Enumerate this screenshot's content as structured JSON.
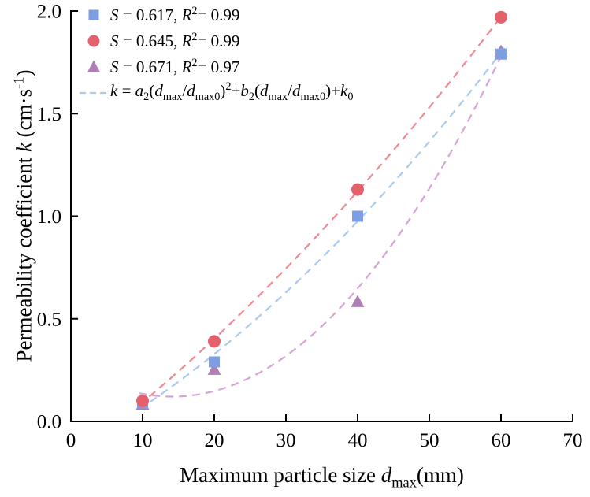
{
  "chart_data": {
    "type": "scatter",
    "title": "",
    "xlabel_rich": "Maximum particle size *d*_{max}(mm)",
    "ylabel_rich": "Permeability coefficient *k* (cm·s^{-1})",
    "xlim": [
      0,
      70
    ],
    "ylim": [
      0,
      2
    ],
    "xticks": [
      0,
      10,
      20,
      30,
      40,
      50,
      60,
      70
    ],
    "xtick_labels": [
      "0",
      "10",
      "20",
      "30",
      "40",
      "50",
      "60",
      "70"
    ],
    "yticks": [
      0,
      0.5,
      1.0,
      1.5,
      2.0
    ],
    "ytick_labels": [
      "0.0",
      "0.5",
      "1.0",
      "1.5",
      "2.0"
    ],
    "grid": false,
    "legend_position": "top-left",
    "fit": "quadratic",
    "fit_label_rich": "*k* = *a*_{2}(*d*_{max}/*d*_{max0})^{2}+*b*_{2}(*d*_{max}/*d*_{max0})+*k*_{0}",
    "fit_line_color": "#aacbee",
    "axis_color": "#000000",
    "series": [
      {
        "name": "S = 0.617, R2 = 0.99",
        "label_rich": "*S* = 0.617, *R*^{2}= 0.99",
        "marker": "square",
        "color": "#7d9ee0",
        "line_color": "#aacbee",
        "x": [
          10,
          20,
          40,
          60
        ],
        "y": [
          0.09,
          0.29,
          1.0,
          1.79
        ]
      },
      {
        "name": "S = 0.645, R2 = 0.99",
        "label_rich": "*S* = 0.645, *R*^{2}= 0.99",
        "marker": "circle",
        "color": "#e5606d",
        "line_color": "#ee8a93",
        "x": [
          10,
          20,
          40,
          60
        ],
        "y": [
          0.1,
          0.39,
          1.13,
          1.97
        ]
      },
      {
        "name": "S = 0.671, R2 = 0.97",
        "label_rich": "*S* = 0.671, *R*^{2}= 0.97",
        "marker": "triangle",
        "color": "#b07fb5",
        "line_color": "#d8a3d6",
        "x": [
          10,
          20,
          40,
          60
        ],
        "y": [
          0.08,
          0.25,
          0.58,
          1.8
        ]
      }
    ]
  }
}
